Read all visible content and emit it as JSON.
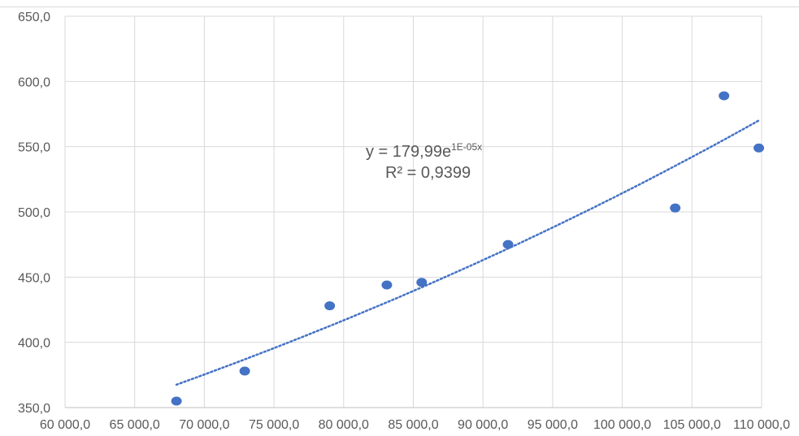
{
  "chart_data": {
    "type": "scatter",
    "title": "",
    "xlabel": "",
    "ylabel": "",
    "xlim": [
      60000,
      110000
    ],
    "ylim": [
      350,
      650
    ],
    "x_ticks": [
      60000,
      65000,
      70000,
      75000,
      80000,
      85000,
      90000,
      95000,
      100000,
      105000,
      110000
    ],
    "y_ticks": [
      350,
      400,
      450,
      500,
      550,
      600,
      650
    ],
    "x_tick_labels": [
      "60 000,0",
      "65 000,0",
      "70 000,0",
      "75 000,0",
      "80 000,0",
      "85 000,0",
      "90 000,0",
      "95 000,0",
      "100 000,0",
      "105 000,0",
      "110 000,0"
    ],
    "y_tick_labels": [
      "350,0",
      "400,0",
      "450,0",
      "500,0",
      "550,0",
      "600,0",
      "650,0"
    ],
    "grid": true,
    "legend": "none",
    "series": [
      {
        "points": [
          {
            "x": 68000,
            "y": 355
          },
          {
            "x": 72900,
            "y": 378
          },
          {
            "x": 79000,
            "y": 428
          },
          {
            "x": 83100,
            "y": 444
          },
          {
            "x": 85600,
            "y": 446
          },
          {
            "x": 91800,
            "y": 475
          },
          {
            "x": 103800,
            "y": 503
          },
          {
            "x": 107300,
            "y": 589
          },
          {
            "x": 109800,
            "y": 549
          }
        ]
      }
    ],
    "trendline": {
      "type": "exponential",
      "a": 179.99,
      "b": 1.05e-05,
      "x_range": [
        68000,
        109800
      ],
      "style": "dotted",
      "equation_main": "y = 179,99e",
      "equation_exp": "1E-05x",
      "r_squared_label": "R² = 0,9399"
    },
    "colors": {
      "marker": "#4472C4",
      "trendline": "#4472C4",
      "grid": "#d9d9d9",
      "text": "#595959"
    }
  }
}
